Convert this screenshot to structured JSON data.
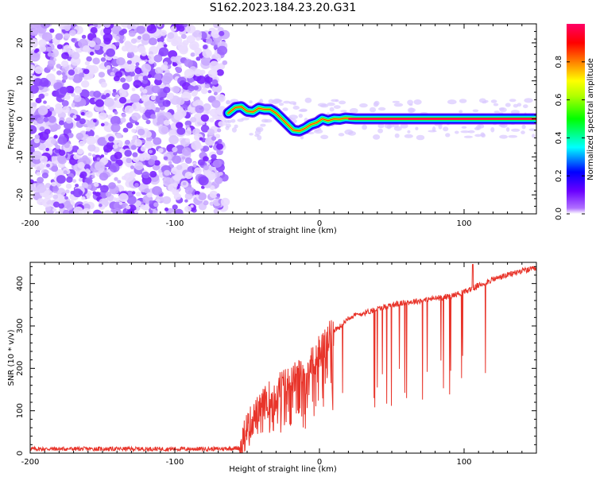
{
  "title": "S162.2023.184.23.20.G31",
  "chart_data": [
    {
      "type": "heatmap",
      "xlabel": "Height of straight line (km)",
      "ylabel": "Frequency (Hz)",
      "xlim": [
        -200,
        150
      ],
      "ylim": [
        -25,
        25
      ],
      "xticks": [
        -200,
        -100,
        0,
        100
      ],
      "yticks": [
        -20,
        -10,
        0,
        10,
        20
      ],
      "colorbar": {
        "label": "Normalized spectral amplitude",
        "range": [
          0,
          1
        ],
        "ticks": [
          "0.0",
          "0.2",
          "0.4",
          "0.6",
          "0.8"
        ],
        "colors": [
          "#ffffff",
          "#7a00ff",
          "#0000ff",
          "#00ffff",
          "#00ff00",
          "#ffff00",
          "#ff8000",
          "#ff0000",
          "#ff0066"
        ]
      },
      "noise_region_x": [
        -200,
        -65
      ],
      "ridge": {
        "x": [
          -63,
          -58,
          -54,
          -50,
          -46,
          -42,
          -38,
          -34,
          -30,
          -26,
          -22,
          -18,
          -14,
          -10,
          -6,
          -2,
          2,
          6,
          10,
          14,
          18,
          25,
          40,
          60,
          80,
          100,
          120,
          150
        ],
        "freq": [
          1.5,
          3,
          3.2,
          2,
          1.8,
          2.8,
          2.5,
          2.5,
          1.5,
          0,
          -1.5,
          -3,
          -3.2,
          -2.5,
          -1.5,
          -1,
          0,
          -0.5,
          0,
          -0.1,
          0.2,
          0,
          0,
          0,
          0,
          0,
          0,
          0
        ]
      }
    },
    {
      "type": "line",
      "xlabel": "Height of straight line (km)",
      "ylabel": "SNR (10 * v/v)",
      "xlim": [
        -200,
        150
      ],
      "ylim": [
        0,
        450
      ],
      "xticks": [
        -200,
        -100,
        0,
        100
      ],
      "yticks": [
        0,
        100,
        200,
        300,
        400
      ],
      "line_color": "#e8342a",
      "series": [
        {
          "x": [
            -200,
            -150,
            -100,
            -70,
            -55,
            -50,
            -40,
            -30,
            -20,
            -10,
            0,
            5,
            10,
            15,
            20,
            30,
            40,
            50,
            60,
            70,
            80,
            90,
            100,
            110,
            120,
            130,
            140,
            150
          ],
          "values": [
            10,
            10,
            10,
            10,
            12,
            60,
            110,
            150,
            170,
            190,
            240,
            260,
            290,
            300,
            320,
            330,
            340,
            350,
            355,
            360,
            365,
            370,
            380,
            395,
            410,
            420,
            430,
            435
          ]
        }
      ]
    }
  ]
}
